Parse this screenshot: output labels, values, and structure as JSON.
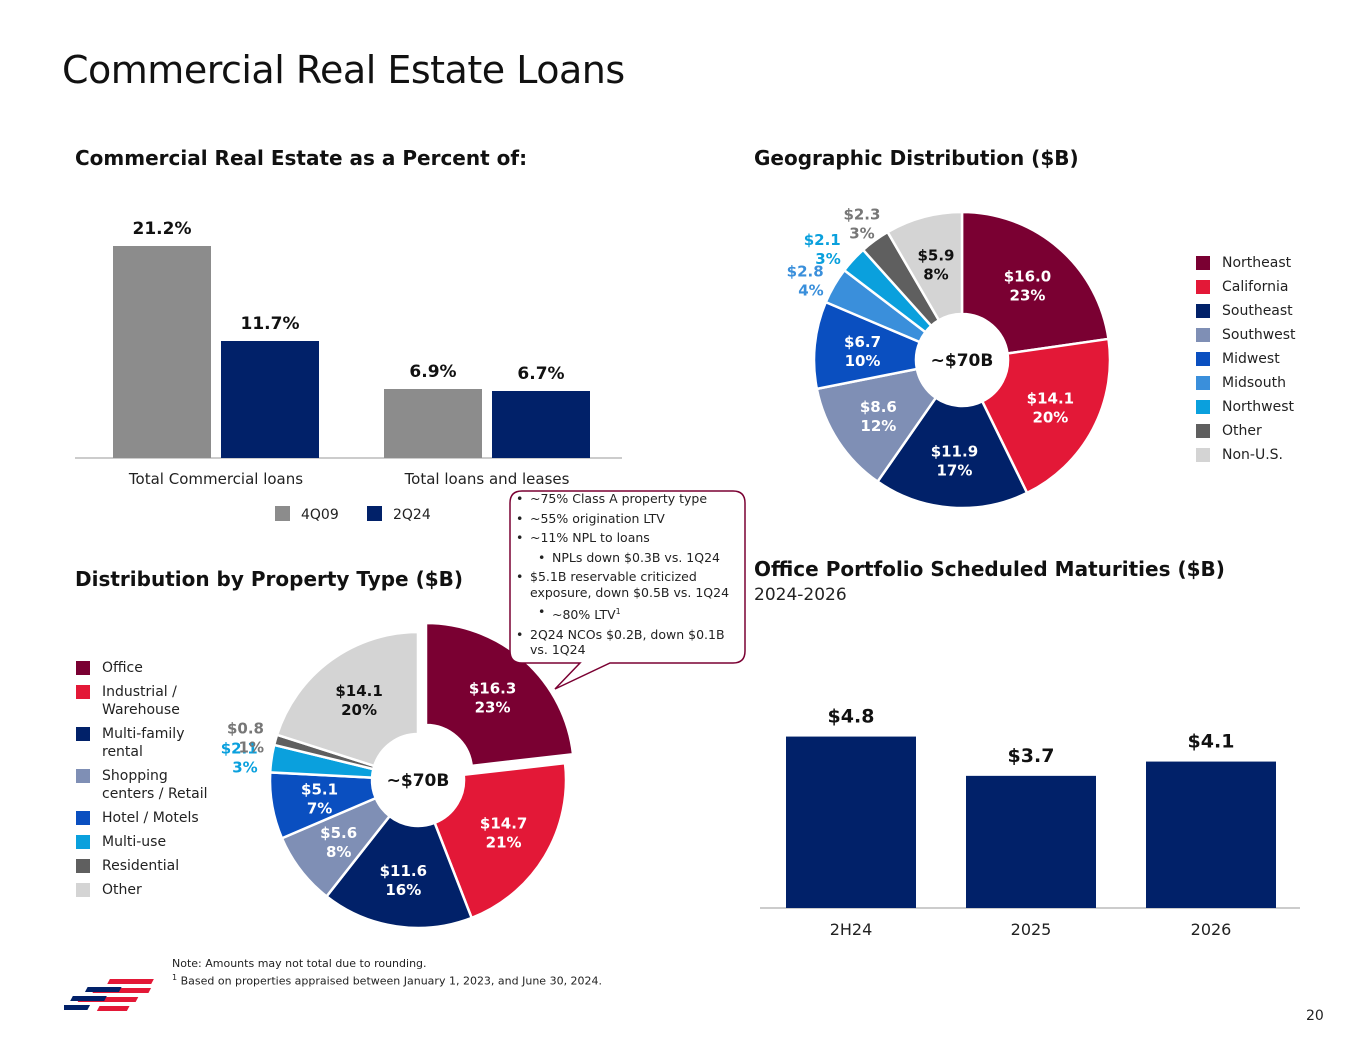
{
  "page": {
    "title": "Commercial Real Estate Loans",
    "page_number": "20",
    "note": "Note: Amounts may not total due to rounding.",
    "footnote_marker": "1",
    "footnote": "Based on properties appraised between January 1, 2023, and June 30, 2024."
  },
  "callout": {
    "items": [
      {
        "text": "~75% Class A property type",
        "level": 1
      },
      {
        "text": "~55% origination LTV",
        "level": 1
      },
      {
        "text": "~11% NPL to loans",
        "level": 1
      },
      {
        "text": "NPLs down $0.3B vs. 1Q24",
        "level": 2
      },
      {
        "text": "$5.1B reservable criticized exposure, down $0.5B vs. 1Q24",
        "level": 1
      },
      {
        "text": "~80% LTV",
        "level": 2,
        "sup": "1"
      },
      {
        "text": "2Q24 NCOs $0.2B, down $0.1B vs. 1Q24",
        "level": 1
      }
    ]
  },
  "chart_data": [
    {
      "id": "cre-percent",
      "type": "bar",
      "title": "Commercial Real Estate as a Percent of:",
      "categories": [
        "Total Commercial loans",
        "Total loans and leases"
      ],
      "series": [
        {
          "name": "4Q09",
          "values": [
            21.2,
            6.9
          ],
          "labels": [
            "21.2%",
            "6.9%"
          ],
          "color": "#8c8c8c"
        },
        {
          "name": "2Q24",
          "values": [
            11.7,
            6.7
          ],
          "labels": [
            "11.7%",
            "6.7%"
          ],
          "color": "#012169"
        }
      ],
      "ylim": [
        0,
        22
      ],
      "legend": "bottom"
    },
    {
      "id": "geo-distribution",
      "type": "pie",
      "title": "Geographic Distribution ($B)",
      "center_label": "~$70B",
      "slices": [
        {
          "name": "Northeast",
          "value": 16.0,
          "label": "$16.0",
          "pct": "23%",
          "color": "#7a0032"
        },
        {
          "name": "California",
          "value": 14.1,
          "label": "$14.1",
          "pct": "20%",
          "color": "#e31837"
        },
        {
          "name": "Southeast",
          "value": 11.9,
          "label": "$11.9",
          "pct": "17%",
          "color": "#012169"
        },
        {
          "name": "Southwest",
          "value": 8.6,
          "label": "$8.6",
          "pct": "12%",
          "color": "#7f8fb5"
        },
        {
          "name": "Midwest",
          "value": 6.7,
          "label": "$6.7",
          "pct": "10%",
          "color": "#0a4fc0"
        },
        {
          "name": "Midsouth",
          "value": 2.8,
          "label": "$2.8",
          "pct": "4%",
          "color": "#3a8fdb"
        },
        {
          "name": "Northwest",
          "value": 2.1,
          "label": "$2.1",
          "pct": "3%",
          "color": "#0aa0dd"
        },
        {
          "name": "Other",
          "value": 2.3,
          "label": "$2.3",
          "pct": "3%",
          "color": "#5f5f5f"
        },
        {
          "name": "Non-U.S.",
          "value": 5.9,
          "label": "$5.9",
          "pct": "8%",
          "color": "#d4d4d4"
        }
      ],
      "legend": "right"
    },
    {
      "id": "property-type",
      "type": "pie",
      "title": "Distribution by Property Type ($B)",
      "center_label": "~$70B",
      "slices": [
        {
          "name": "Office",
          "value": 16.3,
          "label": "$16.3",
          "pct": "23%",
          "color": "#7a0032",
          "exploded": true
        },
        {
          "name": "Industrial / Warehouse",
          "value": 14.7,
          "label": "$14.7",
          "pct": "21%",
          "color": "#e31837"
        },
        {
          "name": "Multi-family rental",
          "value": 11.6,
          "label": "$11.6",
          "pct": "16%",
          "color": "#012169"
        },
        {
          "name": "Shopping centers / Retail",
          "value": 5.6,
          "label": "$5.6",
          "pct": "8%",
          "color": "#7f8fb5"
        },
        {
          "name": "Hotel / Motels",
          "value": 5.1,
          "label": "$5.1",
          "pct": "7%",
          "color": "#0a4fc0"
        },
        {
          "name": "Multi-use",
          "value": 2.1,
          "label": "$2.1",
          "pct": "3%",
          "color": "#0aa0dd"
        },
        {
          "name": "Residential",
          "value": 0.8,
          "label": "$0.8",
          "pct": "1%",
          "color": "#5f5f5f"
        },
        {
          "name": "Other",
          "value": 14.1,
          "label": "$14.1",
          "pct": "20%",
          "color": "#d4d4d4"
        }
      ],
      "legend": "left"
    },
    {
      "id": "office-maturities",
      "type": "bar",
      "title": "Office Portfolio Scheduled Maturities ($B)",
      "subtitle": "2024-2026",
      "categories": [
        "2H24",
        "2025",
        "2026"
      ],
      "values": [
        4.8,
        3.7,
        4.1
      ],
      "labels": [
        "$4.8",
        "$3.7",
        "$4.1"
      ],
      "color": "#012169",
      "ylim": [
        0,
        5.6
      ]
    }
  ]
}
